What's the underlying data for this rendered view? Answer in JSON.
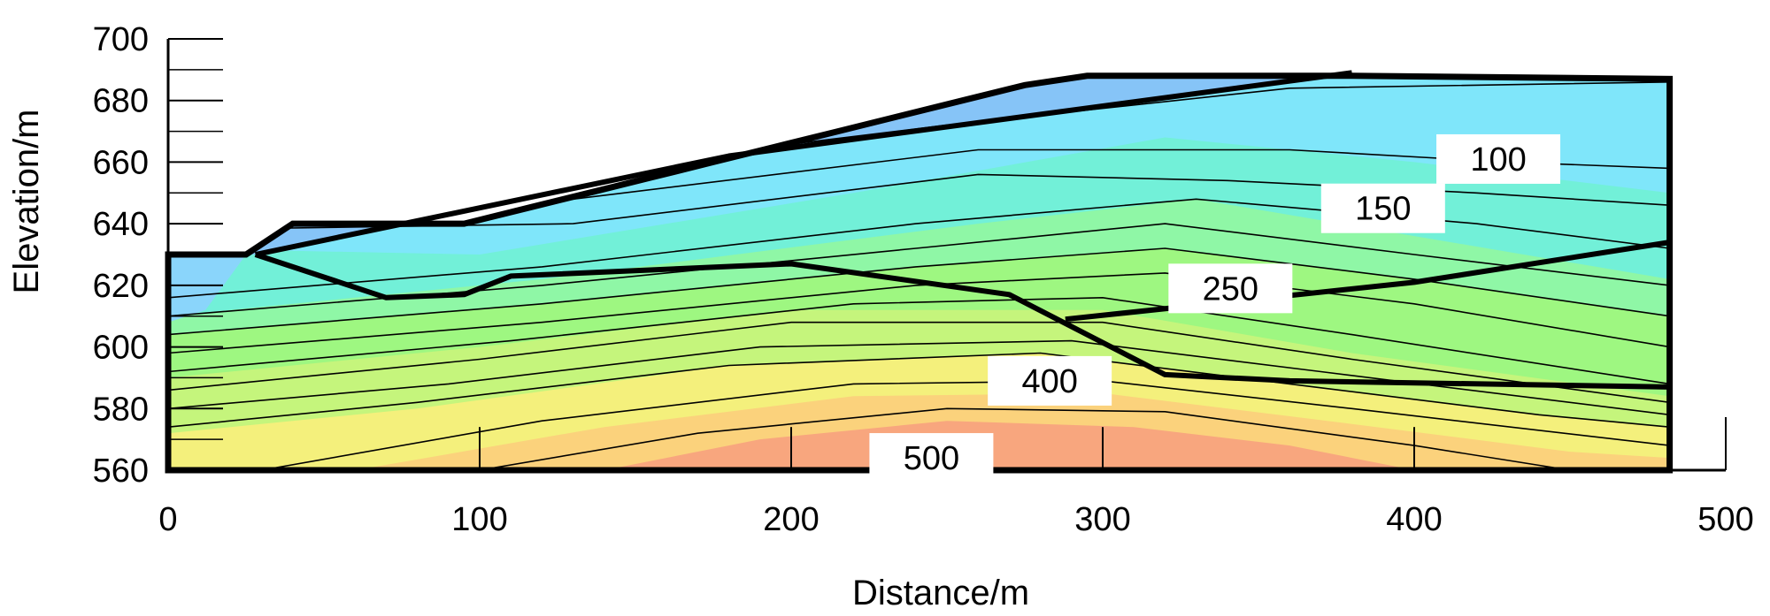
{
  "chart_data": {
    "type": "contour",
    "title": "",
    "xlabel": "Distance/m",
    "ylabel": "Elevation/m",
    "xlim": [
      0,
      500
    ],
    "ylim": [
      560,
      700
    ],
    "x_ticks": [
      0,
      100,
      200,
      300,
      400,
      500
    ],
    "y_ticks": [
      560,
      580,
      600,
      620,
      640,
      660,
      680,
      700
    ],
    "contour_labels": [
      {
        "text": "100",
        "x": 427,
        "y": 661
      },
      {
        "text": "150",
        "x": 390,
        "y": 645
      },
      {
        "text": "250",
        "x": 341,
        "y": 619
      },
      {
        "text": "400",
        "x": 283,
        "y": 589
      },
      {
        "text": "500",
        "x": 245,
        "y": 564
      }
    ],
    "surface_profile": [
      [
        0,
        630
      ],
      [
        25,
        630
      ],
      [
        40,
        640
      ],
      [
        95,
        640
      ],
      [
        115,
        645
      ],
      [
        135,
        650
      ],
      [
        155,
        655
      ],
      [
        175,
        660
      ],
      [
        195,
        665
      ],
      [
        215,
        670
      ],
      [
        235,
        675
      ],
      [
        255,
        680
      ],
      [
        275,
        685
      ],
      [
        295,
        688
      ],
      [
        380,
        688
      ],
      [
        482,
        687
      ],
      [
        482,
        560
      ],
      [
        0,
        560
      ]
    ],
    "layer_boundaries": [
      {
        "name": "",
        "points": [
          [
            28,
            630
          ],
          [
            180,
            662
          ],
          [
            380,
            689
          ]
        ]
      },
      {
        "name": "",
        "points": [
          [
            28,
            630
          ],
          [
            70,
            616
          ],
          [
            95,
            617
          ],
          [
            110,
            623
          ],
          [
            200,
            627
          ],
          [
            270,
            617
          ],
          [
            320,
            591
          ],
          [
            360,
            589
          ],
          [
            482,
            587
          ]
        ]
      },
      {
        "name": "",
        "points": [
          [
            288,
            609
          ],
          [
            400,
            621
          ],
          [
            482,
            634
          ]
        ]
      }
    ],
    "colors": {
      "zone_100": "#7fe6fa",
      "zone_150": "#72f0d8",
      "zone_200": "#8ff7a6",
      "zone_250": "#9ef781",
      "zone_300": "#c5f57c",
      "zone_400": "#f4f07c",
      "zone_450": "#fbd27c",
      "zone_500": "#f8a67e",
      "surface_layer": "#86c4f7",
      "upper_left": "#8ad5fb",
      "outline": "#000000",
      "background": "#ffffff"
    }
  }
}
